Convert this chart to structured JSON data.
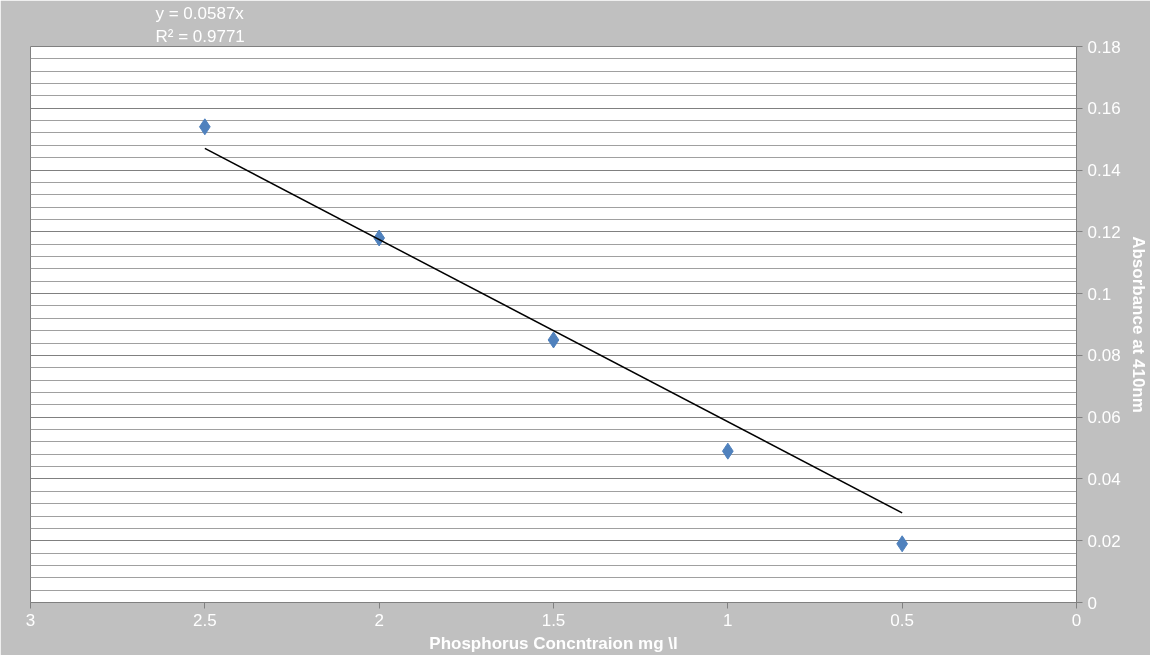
{
  "chart_data": {
    "type": "scatter",
    "xlabel": "Phosphorus Concntraion mg \\l",
    "ylabel": "Absorbance at 410nm",
    "annotations": [
      "y = 0.0587x",
      "R² = 0.9771"
    ],
    "xlim": [
      3,
      0
    ],
    "xticks": [
      3,
      2.5,
      2,
      1.5,
      1,
      0.5,
      0
    ],
    "ylim": [
      0,
      0.18
    ],
    "yticks": [
      0,
      0.02,
      0.04,
      0.06,
      0.08,
      0.1,
      0.12,
      0.14,
      0.16,
      0.18
    ],
    "grid": "y",
    "marker": "diamond",
    "series": [
      {
        "color": "#4f81bd",
        "x": [
          2.5,
          2,
          1.5,
          1,
          0.5
        ],
        "values": [
          0.154,
          0.118,
          0.085,
          0.049,
          0.019
        ]
      },
      {
        "type": "line",
        "marker": "none",
        "color": "#000000",
        "x": [
          2.5,
          0.5
        ],
        "values": [
          0.147,
          0.029
        ]
      }
    ]
  }
}
